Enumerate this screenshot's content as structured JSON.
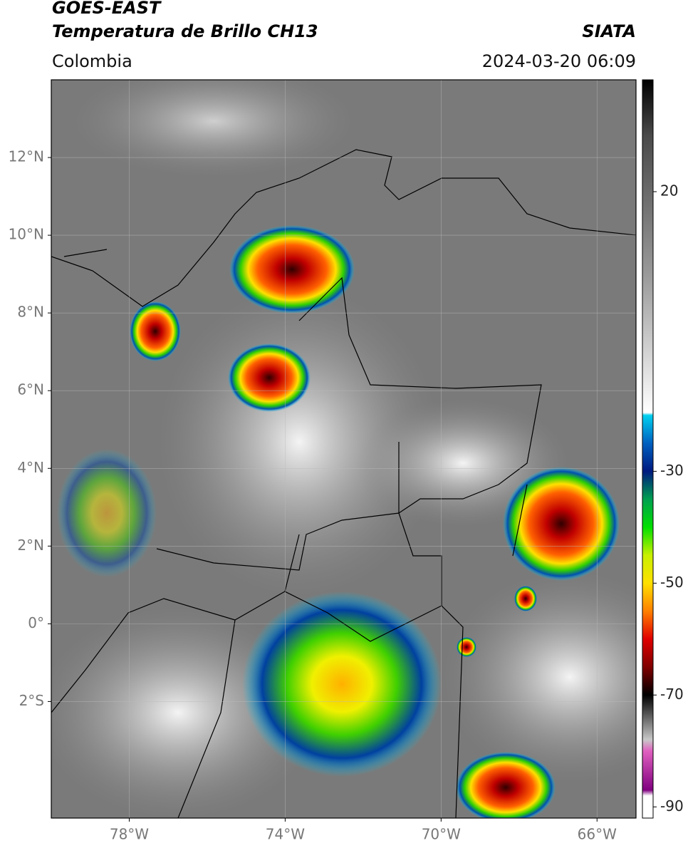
{
  "header": {
    "satellite": "GOES-EAST",
    "product": "Temperatura de Brillo CH13",
    "organization": "SIATA",
    "region": "Colombia",
    "datetime": "2024-03-20 06:09"
  },
  "map": {
    "xlim": [
      -80,
      -65
    ],
    "ylim": [
      -5,
      14
    ],
    "xticks": [
      {
        "value": -78,
        "label": "78°W"
      },
      {
        "value": -74,
        "label": "74°W"
      },
      {
        "value": -70,
        "label": "70°W"
      },
      {
        "value": -66,
        "label": "66°W"
      }
    ],
    "yticks": [
      {
        "value": 12,
        "label": "12°N"
      },
      {
        "value": 10,
        "label": "10°N"
      },
      {
        "value": 8,
        "label": "8°N"
      },
      {
        "value": 6,
        "label": "6°N"
      },
      {
        "value": 4,
        "label": "4°N"
      },
      {
        "value": 2,
        "label": "2°N"
      },
      {
        "value": 0,
        "label": "0°"
      },
      {
        "value": -2,
        "label": "2°S"
      }
    ],
    "grid": true
  },
  "colorbar": {
    "clim": [
      -92,
      40
    ],
    "ticks": [
      20,
      -30,
      -50,
      -70,
      -90
    ],
    "colormap": [
      {
        "value": 40,
        "color": "#000000"
      },
      {
        "value": 30,
        "color": "#4a4a4a"
      },
      {
        "value": 5,
        "color": "#9a9a9a"
      },
      {
        "value": -19.5,
        "color": "#ffffff"
      },
      {
        "value": -20,
        "color": "#00d0f0"
      },
      {
        "value": -25,
        "color": "#0060c0"
      },
      {
        "value": -30,
        "color": "#001a80"
      },
      {
        "value": -35,
        "color": "#00a050"
      },
      {
        "value": -40,
        "color": "#00e000"
      },
      {
        "value": -45,
        "color": "#c8f000"
      },
      {
        "value": -50,
        "color": "#ffe000"
      },
      {
        "value": -55,
        "color": "#ff8000"
      },
      {
        "value": -60,
        "color": "#e00000"
      },
      {
        "value": -65,
        "color": "#800000"
      },
      {
        "value": -70,
        "color": "#000000"
      },
      {
        "value": -78,
        "color": "#c8c8c8"
      },
      {
        "value": -80,
        "color": "#e060c0"
      },
      {
        "value": -87,
        "color": "#800080"
      },
      {
        "value": -88,
        "color": "#ffffff"
      },
      {
        "value": -92,
        "color": "#ffffff"
      }
    ]
  }
}
